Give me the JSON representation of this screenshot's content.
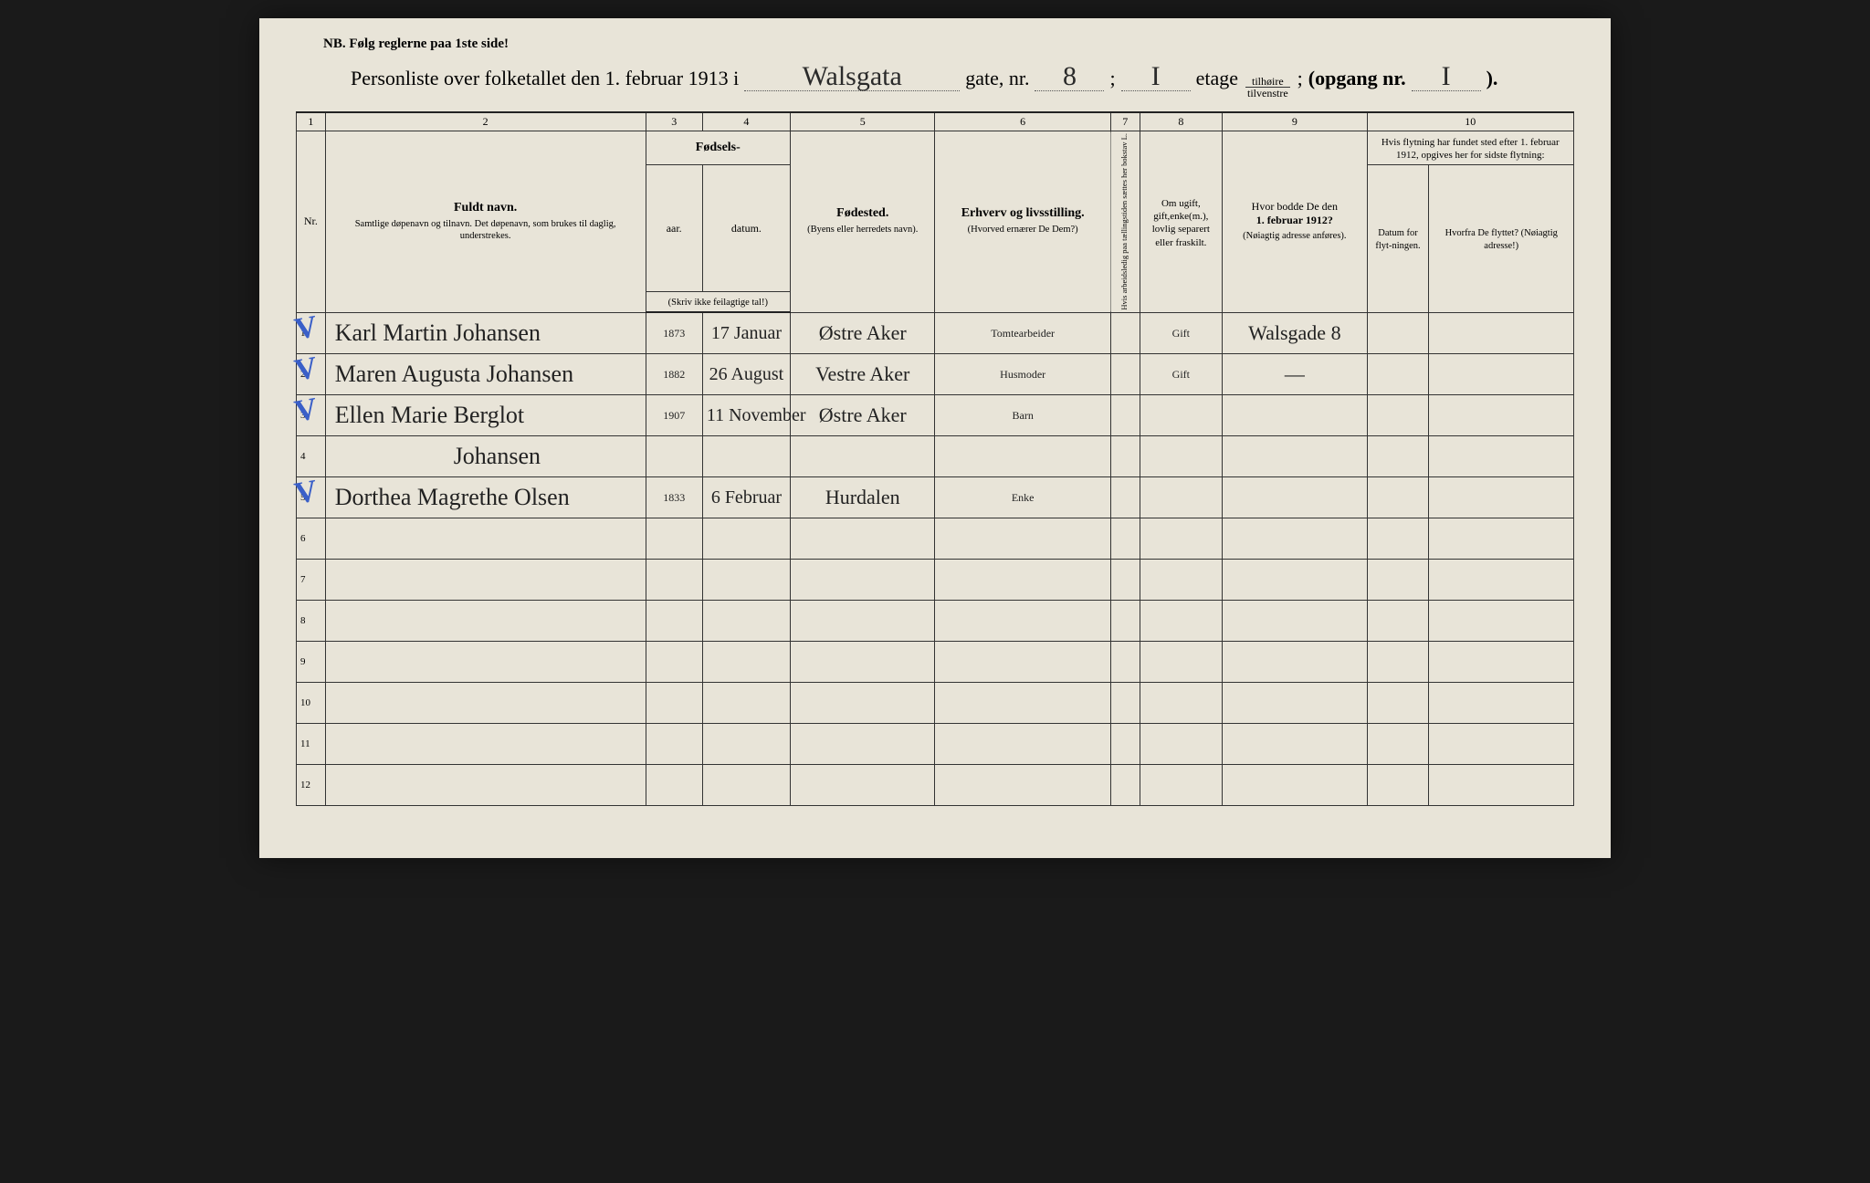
{
  "nb": "NB.  Følg reglerne paa 1ste side!",
  "title": {
    "lead": "Personliste over folketallet den 1. februar 1913 i",
    "street": "Walsgata",
    "gate_label": "gate, nr.",
    "gate_nr": "8",
    "semicolon": ";",
    "etage_val": "I",
    "etage_label": "etage",
    "frac_top": "tilhøire",
    "frac_bot": "tilvenstre",
    "comma": ";",
    "opgang_label": "(opgang nr.",
    "opgang_val": "I",
    "close": ")."
  },
  "colnums": [
    "1",
    "2",
    "3",
    "4",
    "5",
    "6",
    "7",
    "8",
    "9",
    "10"
  ],
  "headers": {
    "nr": "Nr.",
    "name_main": "Fuldt navn.",
    "name_sub": "Samtlige døpenavn og tilnavn. Det døpenavn, som brukes til daglig, understrekes.",
    "fodsels": "Fødsels-",
    "aar": "aar.",
    "datum": "datum.",
    "fodsels_sub": "(Skriv ikke feilagtige tal!)",
    "fodested": "Fødested.",
    "fodested_sub": "(Byens eller herredets navn).",
    "erhverv": "Erhverv og livsstilling.",
    "erhverv_sub": "(Hvorved ernærer De Dem?)",
    "col7": "Hvis arbeidsledig paa tællingstiden sættes her bokstav L.",
    "col8": "Om ugift, gift,enke(m.), lovlig separert eller fraskilt.",
    "col9_a": "Hvor bodde De den",
    "col9_b": "1. februar 1912?",
    "col9_sub": "(Nøiagtig adresse anføres).",
    "col10_top": "Hvis flytning har fundet sted efter 1. februar 1912, opgives her for sidste flytning:",
    "col10a": "Datum for flyt-ningen.",
    "col10b": "Hvorfra De flyttet? (Nøiagtig adresse!)"
  },
  "rows": [
    {
      "nr": "1",
      "check": true,
      "name": "Karl Martin Johansen",
      "aar": "1873",
      "datum": "17 Januar",
      "sted": "Østre Aker",
      "erh": "Tomtearbeider",
      "c7": "",
      "c8": "Gift",
      "c9": "Walsgade 8",
      "c10a": "",
      "c10b": ""
    },
    {
      "nr": "2",
      "check": true,
      "name": "Maren Augusta Johansen",
      "aar": "1882",
      "datum": "26 August",
      "sted": "Vestre Aker",
      "erh": "Husmoder",
      "c7": "",
      "c8": "Gift",
      "c9": "—",
      "c10a": "",
      "c10b": ""
    },
    {
      "nr": "3",
      "check": true,
      "name": "Ellen Marie Berglot",
      "aar": "1907",
      "datum": "11 November",
      "sted": "Østre Aker",
      "erh": "Barn",
      "c7": "",
      "c8": "",
      "c9": "",
      "c10a": "",
      "c10b": ""
    },
    {
      "nr": "4",
      "check": false,
      "name": "Johansen",
      "aar": "",
      "datum": "",
      "sted": "",
      "erh": "",
      "c7": "",
      "c8": "",
      "c9": "",
      "c10a": "",
      "c10b": ""
    },
    {
      "nr": "5",
      "check": true,
      "name": "Dorthea Magrethe Olsen",
      "aar": "1833",
      "datum": "6 Februar",
      "sted": "Hurdalen",
      "erh": "Enke",
      "c7": "",
      "c8": "",
      "c9": "",
      "c10a": "",
      "c10b": ""
    },
    {
      "nr": "6",
      "check": false,
      "name": "",
      "aar": "",
      "datum": "",
      "sted": "",
      "erh": "",
      "c7": "",
      "c8": "",
      "c9": "",
      "c10a": "",
      "c10b": ""
    },
    {
      "nr": "7",
      "check": false,
      "name": "",
      "aar": "",
      "datum": "",
      "sted": "",
      "erh": "",
      "c7": "",
      "c8": "",
      "c9": "",
      "c10a": "",
      "c10b": ""
    },
    {
      "nr": "8",
      "check": false,
      "name": "",
      "aar": "",
      "datum": "",
      "sted": "",
      "erh": "",
      "c7": "",
      "c8": "",
      "c9": "",
      "c10a": "",
      "c10b": ""
    },
    {
      "nr": "9",
      "check": false,
      "name": "",
      "aar": "",
      "datum": "",
      "sted": "",
      "erh": "",
      "c7": "",
      "c8": "",
      "c9": "",
      "c10a": "",
      "c10b": ""
    },
    {
      "nr": "10",
      "check": false,
      "name": "",
      "aar": "",
      "datum": "",
      "sted": "",
      "erh": "",
      "c7": "",
      "c8": "",
      "c9": "",
      "c10a": "",
      "c10b": ""
    },
    {
      "nr": "11",
      "check": false,
      "name": "",
      "aar": "",
      "datum": "",
      "sted": "",
      "erh": "",
      "c7": "",
      "c8": "",
      "c9": "",
      "c10a": "",
      "c10b": ""
    },
    {
      "nr": "12",
      "check": false,
      "name": "",
      "aar": "",
      "datum": "",
      "sted": "",
      "erh": "",
      "c7": "",
      "c8": "",
      "c9": "",
      "c10a": "",
      "c10b": ""
    }
  ],
  "style": {
    "paper_bg": "#e8e4d8",
    "ink": "#222222",
    "pencil_blue": "#3a5fc8",
    "hand_font": "Brush Script MT",
    "print_font": "Times New Roman"
  }
}
